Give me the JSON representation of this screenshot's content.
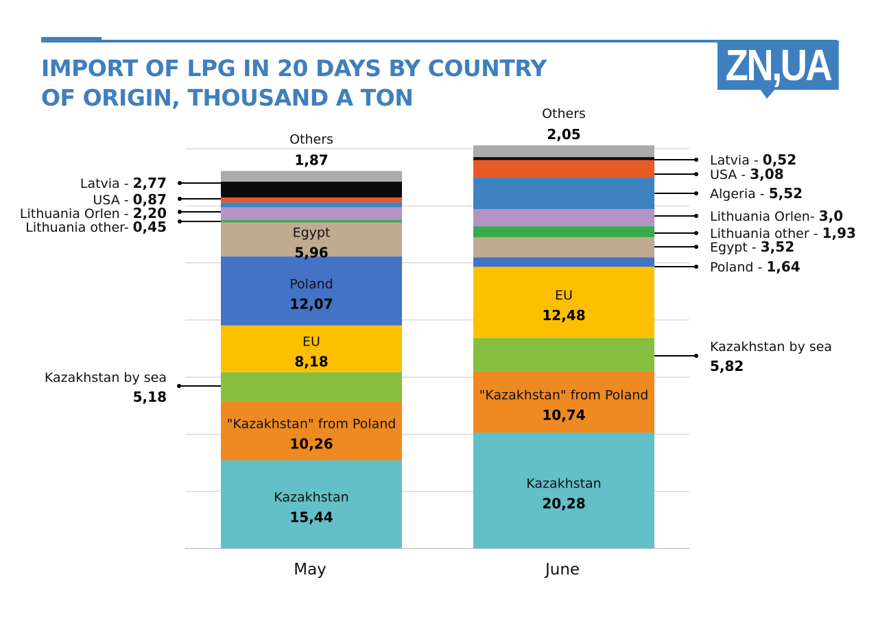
{
  "header": {
    "title_line1": "IMPORT OF LPG IN 20 DAYS BY COUNTRY",
    "title_line2": "OF ORIGIN, THOUSAND A TON",
    "logo": "ZN,UA",
    "accent_color": "#3f7fbd"
  },
  "chart_data": {
    "type": "bar",
    "stacked": true,
    "title": "IMPORT OF LPG IN 20 DAYS BY COUNTRY OF ORIGIN, THOUSAND A TON",
    "xlabel": "",
    "ylabel": "",
    "categories": [
      "May",
      "June"
    ],
    "ylim": [
      0,
      70
    ],
    "grid": true,
    "unit": "thousand tons",
    "series": [
      {
        "name": "Kazakhstan",
        "color": "#63bfc8",
        "values": [
          15.44,
          20.28
        ],
        "labels": [
          "15,44",
          "20,28"
        ]
      },
      {
        "name": "\"Kazakhstan\" from Poland",
        "color": "#ef8a22",
        "values": [
          10.26,
          10.74
        ],
        "labels": [
          "10,26",
          "10,74"
        ]
      },
      {
        "name": "Kazakhstan by sea",
        "color": "#86bf40",
        "values": [
          5.18,
          5.82
        ],
        "labels": [
          "5,18",
          "5,82"
        ]
      },
      {
        "name": "EU",
        "color": "#fdc000",
        "values": [
          8.18,
          12.48
        ],
        "labels": [
          "8,18",
          "12,48"
        ]
      },
      {
        "name": "Poland",
        "color": "#4472c4",
        "values": [
          12.07,
          1.64
        ],
        "labels": [
          "12,07",
          "1,64"
        ]
      },
      {
        "name": "Egypt",
        "color": "#c0aa92",
        "values": [
          5.96,
          3.52
        ],
        "labels": [
          "5,96",
          "3,52"
        ]
      },
      {
        "name": "Lithuania other",
        "color": "#39ac4a",
        "values": [
          0.45,
          1.93
        ],
        "labels": [
          "0,45",
          "1,93"
        ]
      },
      {
        "name": "Lithuania Orlen",
        "color": "#b294c7",
        "values": [
          2.2,
          3.0
        ],
        "labels": [
          "2,20",
          "3,0"
        ]
      },
      {
        "name": "Algeria",
        "color": "#3f82c0",
        "values": [
          0.85,
          5.52
        ],
        "labels": [
          null,
          "5,52"
        ]
      },
      {
        "name": "USA",
        "color": "#e85a25",
        "values": [
          0.87,
          3.08
        ],
        "labels": [
          "0,87",
          "3,08"
        ]
      },
      {
        "name": "Latvia",
        "color": "#0a0a0c",
        "values": [
          2.77,
          0.52
        ],
        "labels": [
          "2,77",
          "0,52"
        ]
      },
      {
        "name": "Others",
        "color": "#ababab",
        "values": [
          1.87,
          2.05
        ],
        "labels": [
          "1,87",
          "2,05"
        ]
      }
    ],
    "annotations": {
      "May": {
        "inside": [
          {
            "series": "Kazakhstan",
            "name": "Kazakhstan",
            "value": "15,44"
          },
          {
            "series": "\"Kazakhstan\" from Poland",
            "name": "\"Kazakhstan\" from Poland",
            "value": "10,26"
          },
          {
            "series": "EU",
            "name": "EU",
            "value": "8,18"
          },
          {
            "series": "Poland",
            "name": "Poland",
            "value": "12,07"
          },
          {
            "series": "Egypt",
            "name": "Egypt",
            "value": "5,96"
          }
        ],
        "top": {
          "name": "Others",
          "value": "1,87"
        },
        "callouts_left": [
          {
            "series": "Latvia",
            "name": "Latvia - ",
            "value": "2,77"
          },
          {
            "series": "USA",
            "name": "USA - ",
            "value": "0,87"
          },
          {
            "series": "Lithuania Orlen",
            "name": "Lithuania Orlen - ",
            "value": "2,20"
          },
          {
            "series": "Lithuania other",
            "name": "Lithuania other- ",
            "value": "0,45"
          }
        ],
        "callout_sea": {
          "series": "Kazakhstan by sea",
          "name": "Kazakhstan by sea",
          "value": "5,18"
        }
      },
      "June": {
        "inside": [
          {
            "series": "Kazakhstan",
            "name": "Kazakhstan",
            "value": "20,28"
          },
          {
            "series": "\"Kazakhstan\" from Poland",
            "name": "\"Kazakhstan\" from Poland",
            "value": "10,74"
          },
          {
            "series": "EU",
            "name": "EU",
            "value": "12,48"
          }
        ],
        "top": {
          "name": "Others",
          "value": "2,05"
        },
        "callouts_right": [
          {
            "series": "Latvia",
            "name": "Latvia - ",
            "value": "0,52"
          },
          {
            "series": "USA",
            "name": "USA - ",
            "value": "3,08"
          },
          {
            "series": "Algeria",
            "name": "Algeria - ",
            "value": "5,52"
          },
          {
            "series": "Lithuania Orlen",
            "name": "Lithuania Orlen- ",
            "value": "3,0"
          },
          {
            "series": "Lithuania other",
            "name": "Lithuania other - ",
            "value": "1,93"
          },
          {
            "series": "Egypt",
            "name": "Egypt - ",
            "value": "3,52"
          },
          {
            "series": "Poland",
            "name": "Poland - ",
            "value": "1,64"
          }
        ],
        "callout_sea": {
          "series": "Kazakhstan by sea",
          "name": "Kazakhstan by sea",
          "value": "5,82"
        }
      }
    }
  }
}
